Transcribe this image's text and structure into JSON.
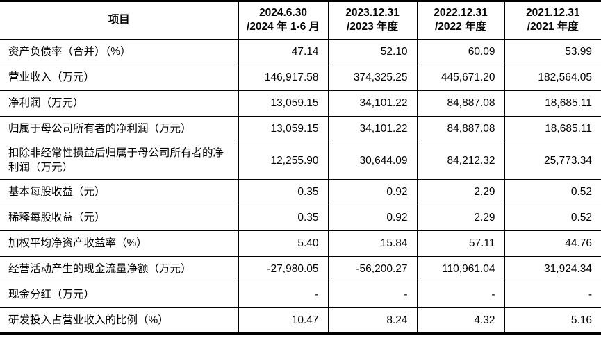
{
  "colors": {
    "background": "#ffffff",
    "text": "#000000",
    "border": "#000000"
  },
  "table": {
    "header": {
      "item_label": "项目",
      "periods": [
        {
          "line1": "2024.6.30",
          "line2": "/2024 年 1-6 月"
        },
        {
          "line1": "2023.12.31",
          "line2": "/2023 年度"
        },
        {
          "line1": "2022.12.31",
          "line2": "/2022 年度"
        },
        {
          "line1": "2021.12.31",
          "line2": "/2021 年度"
        }
      ]
    },
    "rows": [
      {
        "label": "资产负债率（合并）（%）",
        "values": [
          "47.14",
          "52.10",
          "60.09",
          "53.99"
        ]
      },
      {
        "label": "营业收入（万元）",
        "values": [
          "146,917.58",
          "374,325.25",
          "445,671.20",
          "182,564.05"
        ]
      },
      {
        "label": "净利润（万元）",
        "values": [
          "13,059.15",
          "34,101.22",
          "84,887.08",
          "18,685.11"
        ]
      },
      {
        "label": "归属于母公司所有者的净利润（万元）",
        "values": [
          "13,059.15",
          "34,101.22",
          "84,887.08",
          "18,685.11"
        ]
      },
      {
        "label": "扣除非经常性损益后归属于母公司所有者的净利润（万元）",
        "values": [
          "12,255.90",
          "30,644.09",
          "84,212.32",
          "25,773.34"
        ]
      },
      {
        "label": "基本每股收益（元）",
        "values": [
          "0.35",
          "0.92",
          "2.29",
          "0.52"
        ]
      },
      {
        "label": "稀释每股收益（元）",
        "values": [
          "0.35",
          "0.92",
          "2.29",
          "0.52"
        ]
      },
      {
        "label": "加权平均净资产收益率（%）",
        "values": [
          "5.40",
          "15.84",
          "57.11",
          "44.76"
        ]
      },
      {
        "label": "经营活动产生的现金流量净额（万元）",
        "values": [
          "-27,980.05",
          "-56,200.27",
          "110,961.04",
          "31,924.34"
        ]
      },
      {
        "label": "现金分红（万元）",
        "values": [
          "-",
          "-",
          "-",
          "-"
        ]
      },
      {
        "label": "研发投入占营业收入的比例（%）",
        "values": [
          "10.47",
          "8.24",
          "4.32",
          "5.16"
        ]
      }
    ]
  }
}
